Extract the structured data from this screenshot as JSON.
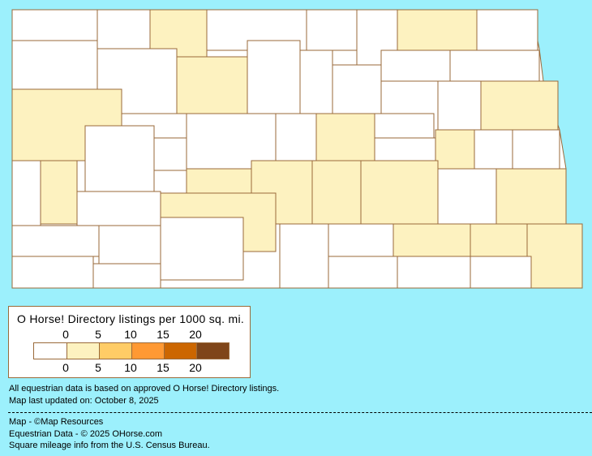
{
  "legend": {
    "title": "O Horse! Directory listings per 1000 sq. mi.",
    "top_ticks": [
      "0",
      "5",
      "10",
      "15",
      "20"
    ],
    "bottom_ticks": [
      "0",
      "5",
      "10",
      "15",
      "20"
    ],
    "colors": [
      "#FFFFFF",
      "#FDF2C0",
      "#FFCC66",
      "#FF9933",
      "#CC6600",
      "#7F4519"
    ]
  },
  "notes": {
    "line1": "All equestrian data is based on approved O Horse! Directory listings.",
    "line2": "Map last updated on: October 8, 2025",
    "credit_map": "Map - ©Map Resources",
    "credit_data": "Equestrian Data - © 2025 OHorse.com",
    "credit_census": "Square mileage info from the U.S. Census Bureau."
  },
  "map": {
    "background": "#9CF0FC",
    "border_color": "#9A6A3A",
    "county_levels": [
      0,
      0,
      1,
      0,
      0,
      0,
      1,
      0,
      0,
      0,
      1,
      0,
      0,
      0,
      0,
      0,
      1,
      0,
      1,
      0,
      0,
      0,
      0,
      1,
      0,
      0,
      1,
      0,
      0,
      0,
      1,
      0,
      1,
      1,
      1,
      1,
      0,
      1,
      1,
      0,
      0,
      0,
      0,
      0,
      1,
      1,
      1,
      0,
      0,
      0,
      0,
      0
    ]
  }
}
